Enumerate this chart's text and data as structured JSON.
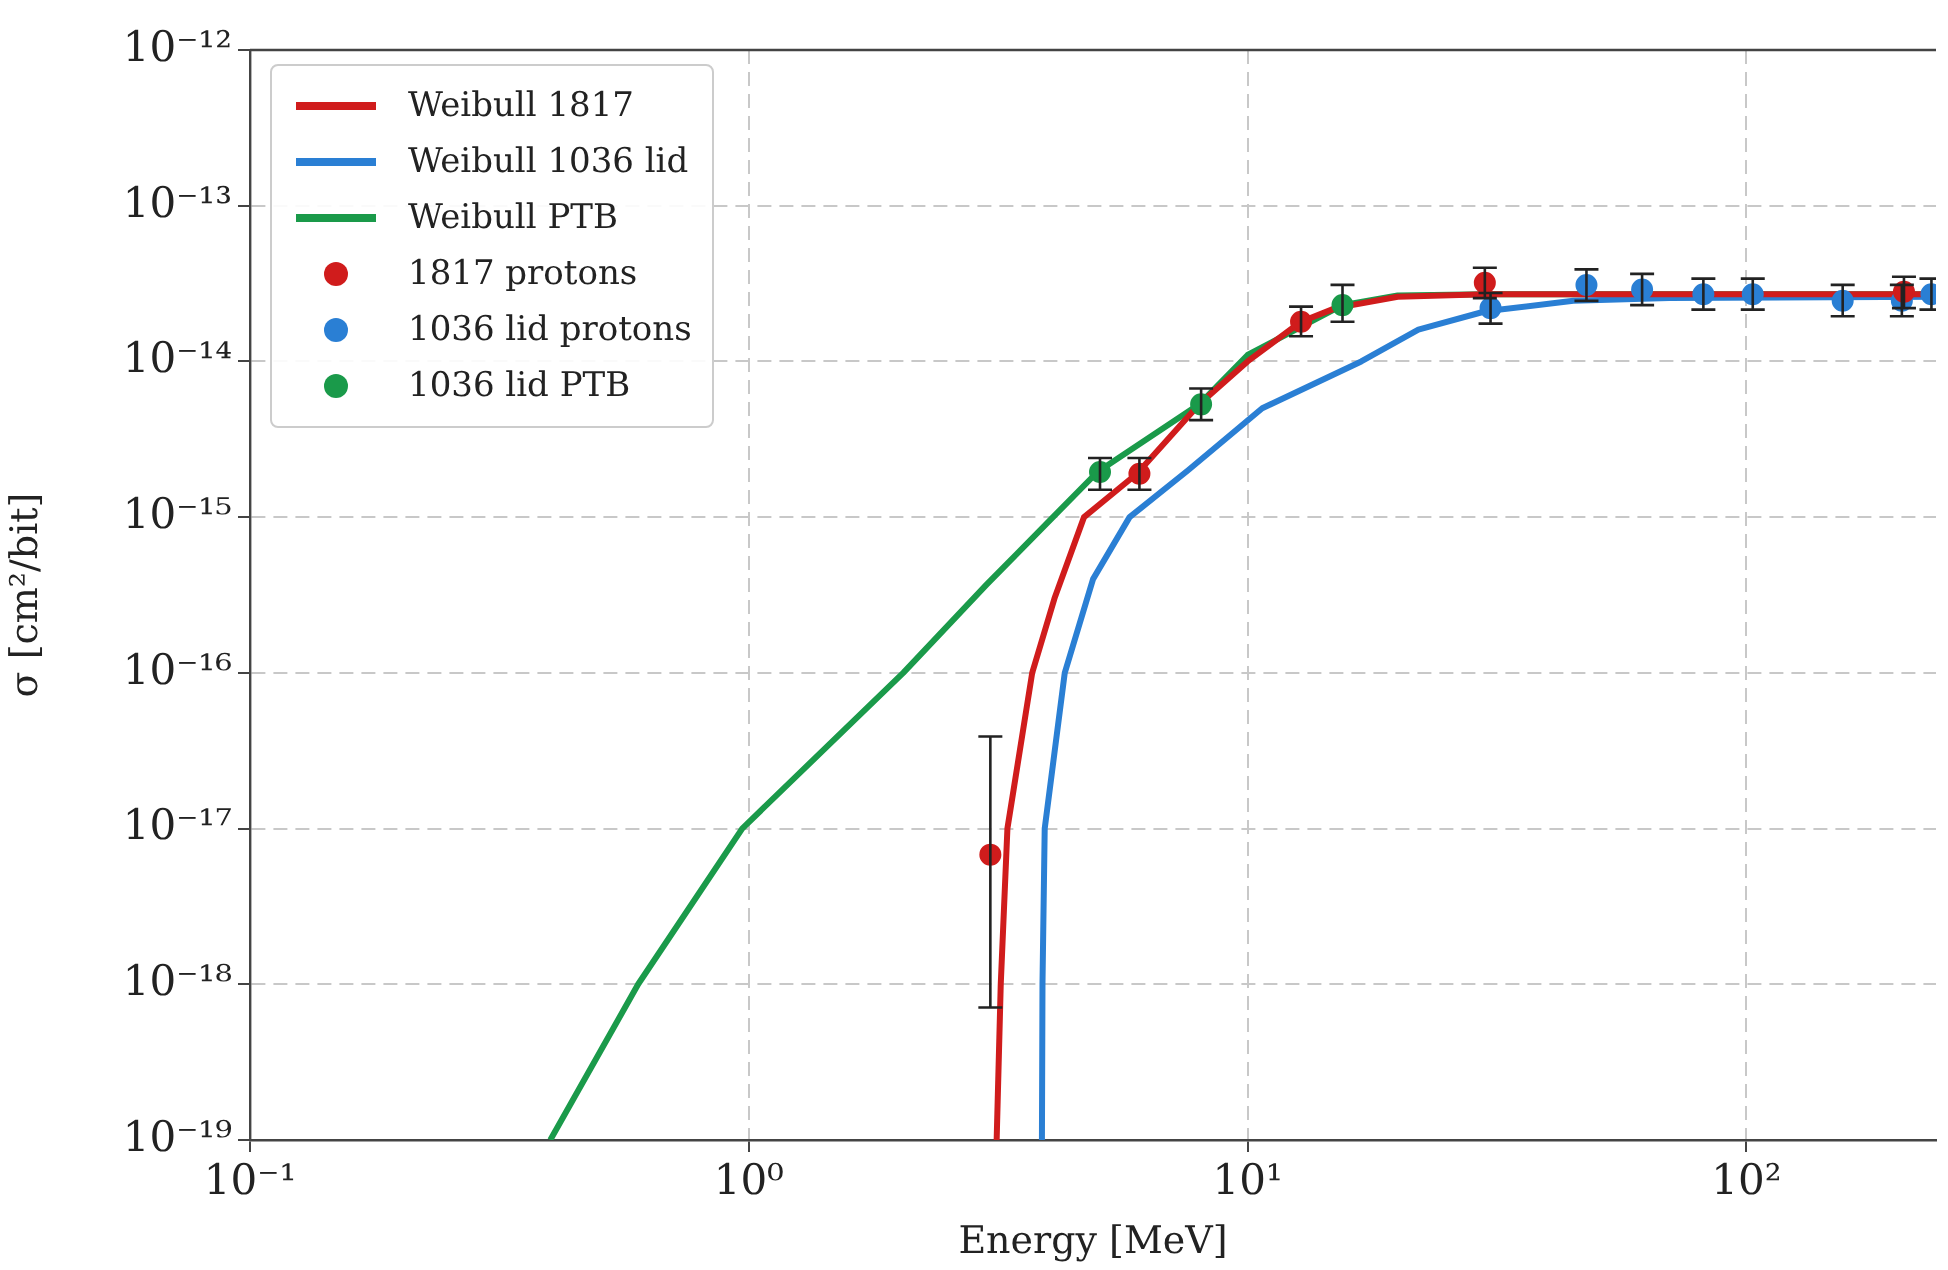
{
  "chart_data": {
    "type": "line",
    "xlabel": "Energy [MeV]",
    "ylabel": "σ [cm²/bit]",
    "log": "xy",
    "grid": true,
    "legend": "top left",
    "xlim": [
      0.1,
      240
    ],
    "ylim": [
      1e-19,
      1e-12
    ],
    "xticks": [
      {
        "value": 0.1,
        "label": "10⁻¹"
      },
      {
        "value": 1,
        "label": "10⁰"
      },
      {
        "value": 10,
        "label": "10¹"
      },
      {
        "value": 100,
        "label": "10²"
      }
    ],
    "yticks": [
      {
        "value": 1e-19,
        "label": "10⁻¹⁹"
      },
      {
        "value": 1e-18,
        "label": "10⁻¹⁸"
      },
      {
        "value": 1e-17,
        "label": "10⁻¹⁷"
      },
      {
        "value": 1e-16,
        "label": "10⁻¹⁶"
      },
      {
        "value": 1e-15,
        "label": "10⁻¹⁵"
      },
      {
        "value": 1e-14,
        "label": "10⁻¹⁴"
      },
      {
        "value": 1e-13,
        "label": "10⁻¹³"
      },
      {
        "value": 1e-12,
        "label": "10⁻¹²"
      }
    ],
    "series": [
      {
        "name": "Weibull 1817",
        "marker": "none",
        "color": "#d01c1c",
        "x": [
          3.14,
          3.2,
          3.3,
          3.7,
          4.1,
          4.7,
          6.0,
          8.0,
          10,
          12.8,
          15,
          20,
          30,
          240
        ],
        "values": [
          1e-19,
          1e-18,
          1e-17,
          1e-16,
          3e-16,
          1e-15,
          1.9e-15,
          5.3e-15,
          1e-14,
          1.8e-14,
          2.2e-14,
          2.6e-14,
          2.7e-14,
          2.7e-14
        ]
      },
      {
        "name": "Weibull 1036 lid",
        "marker": "none",
        "color": "#2a7fd4",
        "x": [
          3.87,
          3.88,
          3.92,
          4.3,
          4.9,
          5.8,
          7.6,
          10.7,
          16.9,
          22,
          30,
          45,
          70,
          240
        ],
        "values": [
          1e-19,
          1e-18,
          1e-17,
          1e-16,
          4e-16,
          1e-15,
          2e-15,
          5e-15,
          1e-14,
          1.6e-14,
          2.1e-14,
          2.45e-14,
          2.55e-14,
          2.6e-14
        ]
      },
      {
        "name": "Weibull PTB",
        "marker": "none",
        "color": "#1a9a4a",
        "x": [
          0.4,
          0.6,
          0.97,
          2.04,
          3.0,
          5.0,
          8.0,
          10,
          15.5,
          20,
          30,
          240
        ],
        "values": [
          1e-19,
          1e-18,
          1e-17,
          1e-16,
          3.7e-16,
          1.95e-15,
          5.3e-15,
          1.1e-14,
          2.3e-14,
          2.65e-14,
          2.7e-14,
          2.7e-14
        ]
      },
      {
        "name": "1817 protons",
        "type": "scatter",
        "marker": "circle",
        "color": "#d01c1c",
        "x": [
          3.05,
          6.07,
          12.8,
          29.9,
          207
        ],
        "values": [
          6.8e-18,
          1.9e-15,
          1.8e-14,
          3.2e-14,
          2.8e-14
        ],
        "errors": [
          [
            7.1e-19,
            3.9e-17
          ],
          [
            1.5e-15,
            2.4e-15
          ],
          [
            1.45e-14,
            2.25e-14
          ],
          [
            2.55e-14,
            4e-14
          ],
          [
            2.2e-14,
            3.5e-14
          ]
        ]
      },
      {
        "name": "1036 lid protons",
        "type": "scatter",
        "marker": "circle",
        "color": "#2a7fd4",
        "x": [
          30.7,
          47.8,
          61.8,
          82,
          103,
          156,
          205,
          235
        ],
        "values": [
          2.2e-14,
          3.1e-14,
          2.9e-14,
          2.7e-14,
          2.7e-14,
          2.45e-14,
          2.45e-14,
          2.7e-14
        ],
        "errors": [
          [
            1.75e-14,
            2.75e-14
          ],
          [
            2.45e-14,
            3.9e-14
          ],
          [
            2.3e-14,
            3.65e-14
          ],
          [
            2.15e-14,
            3.4e-14
          ],
          [
            2.15e-14,
            3.4e-14
          ],
          [
            1.95e-14,
            3.1e-14
          ],
          [
            1.95e-14,
            3.1e-14
          ],
          [
            2.15e-14,
            3.4e-14
          ]
        ]
      },
      {
        "name": "1036 lid PTB",
        "type": "scatter",
        "marker": "circle",
        "color": "#1a9a4a",
        "x": [
          5.06,
          8.07,
          15.5
        ],
        "values": [
          1.95e-15,
          5.3e-15,
          2.3e-14
        ],
        "errors": [
          [
            1.5e-15,
            2.4e-15
          ],
          [
            4.2e-15,
            6.7e-15
          ],
          [
            1.8e-14,
            3.1e-14
          ]
        ]
      }
    ]
  }
}
